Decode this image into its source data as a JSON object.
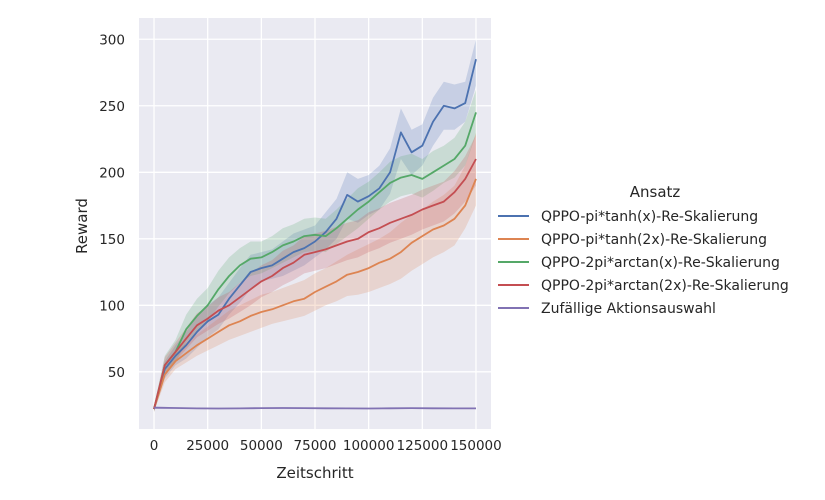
{
  "chart_data": {
    "type": "line",
    "title": "",
    "xlabel": "Zeitschritt",
    "ylabel": "Reward",
    "xlim": [
      -7000,
      157000
    ],
    "ylim": [
      7,
      316
    ],
    "xticks": [
      0,
      25000,
      50000,
      75000,
      100000,
      125000,
      150000
    ],
    "xtick_labels": [
      "0",
      "25000",
      "50000",
      "75000",
      "100000",
      "125000",
      "150000"
    ],
    "yticks": [
      50,
      100,
      150,
      200,
      250,
      300
    ],
    "ytick_labels": [
      "50",
      "100",
      "150",
      "200",
      "250",
      "300"
    ],
    "grid": true,
    "legend": {
      "title": "Ansatz",
      "placement": "right-outside"
    },
    "series": [
      {
        "name": "QPPO-pi*tanh(x)-Re-Skalierung",
        "color": "#4c72b0",
        "x": [
          0,
          5000,
          10000,
          15000,
          20000,
          25000,
          30000,
          35000,
          40000,
          45000,
          50000,
          55000,
          60000,
          65000,
          70000,
          75000,
          80000,
          85000,
          90000,
          95000,
          100000,
          105000,
          110000,
          115000,
          120000,
          125000,
          130000,
          135000,
          140000,
          145000,
          150000
        ],
        "y": [
          22,
          52,
          62,
          70,
          80,
          88,
          93,
          105,
          115,
          125,
          128,
          130,
          135,
          140,
          143,
          148,
          155,
          165,
          183,
          178,
          182,
          188,
          200,
          230,
          215,
          220,
          238,
          250,
          248,
          252,
          285
        ],
        "lower": [
          20,
          45,
          55,
          60,
          68,
          76,
          82,
          93,
          102,
          112,
          118,
          120,
          122,
          126,
          130,
          136,
          142,
          150,
          165,
          162,
          168,
          172,
          184,
          210,
          198,
          205,
          220,
          232,
          232,
          238,
          265
        ],
        "upper": [
          24,
          58,
          70,
          80,
          92,
          100,
          106,
          117,
          128,
          138,
          140,
          142,
          148,
          154,
          157,
          160,
          170,
          180,
          200,
          195,
          198,
          205,
          218,
          248,
          232,
          236,
          256,
          268,
          266,
          268,
          300
        ]
      },
      {
        "name": "QPPO-pi*tanh(2x)-Re-Skalierung",
        "color": "#dd8452",
        "x": [
          0,
          5000,
          10000,
          15000,
          20000,
          25000,
          30000,
          35000,
          40000,
          45000,
          50000,
          55000,
          60000,
          65000,
          70000,
          75000,
          80000,
          85000,
          90000,
          95000,
          100000,
          105000,
          110000,
          115000,
          120000,
          125000,
          130000,
          135000,
          140000,
          145000,
          150000
        ],
        "y": [
          22,
          48,
          58,
          64,
          70,
          75,
          80,
          85,
          88,
          92,
          95,
          97,
          100,
          103,
          105,
          110,
          114,
          118,
          123,
          125,
          128,
          132,
          135,
          140,
          147,
          152,
          157,
          160,
          165,
          175,
          195
        ],
        "lower": [
          20,
          42,
          52,
          57,
          62,
          66,
          70,
          74,
          77,
          80,
          83,
          86,
          88,
          90,
          92,
          96,
          100,
          103,
          107,
          108,
          110,
          113,
          116,
          120,
          126,
          131,
          136,
          140,
          145,
          158,
          175
        ],
        "upper": [
          24,
          55,
          65,
          72,
          78,
          84,
          90,
          96,
          100,
          104,
          108,
          110,
          113,
          116,
          119,
          124,
          128,
          133,
          138,
          142,
          146,
          150,
          155,
          162,
          168,
          172,
          178,
          183,
          190,
          205,
          230
        ]
      },
      {
        "name": "QPPO-2pi*arctan(x)-Re-Skalierung",
        "color": "#55a868",
        "x": [
          0,
          5000,
          10000,
          15000,
          20000,
          25000,
          30000,
          35000,
          40000,
          45000,
          50000,
          55000,
          60000,
          65000,
          70000,
          75000,
          80000,
          85000,
          90000,
          95000,
          100000,
          105000,
          110000,
          115000,
          120000,
          125000,
          130000,
          135000,
          140000,
          145000,
          150000
        ],
        "y": [
          22,
          55,
          65,
          82,
          92,
          100,
          112,
          122,
          130,
          135,
          136,
          140,
          145,
          148,
          152,
          153,
          152,
          158,
          165,
          172,
          178,
          185,
          192,
          196,
          198,
          195,
          200,
          205,
          210,
          220,
          245
        ],
        "lower": [
          20,
          48,
          57,
          72,
          80,
          88,
          99,
          109,
          117,
          122,
          124,
          128,
          132,
          136,
          140,
          141,
          140,
          146,
          152,
          158,
          165,
          172,
          178,
          182,
          184,
          181,
          186,
          192,
          196,
          205,
          228
        ],
        "upper": [
          24,
          62,
          74,
          93,
          105,
          113,
          126,
          136,
          143,
          148,
          148,
          152,
          158,
          161,
          165,
          166,
          165,
          172,
          180,
          188,
          193,
          200,
          208,
          212,
          214,
          210,
          216,
          220,
          226,
          238,
          262
        ]
      },
      {
        "name": "QPPO-2pi*arctan(2x)-Re-Skalierung",
        "color": "#c44e52",
        "x": [
          0,
          5000,
          10000,
          15000,
          20000,
          25000,
          30000,
          35000,
          40000,
          45000,
          50000,
          55000,
          60000,
          65000,
          70000,
          75000,
          80000,
          85000,
          90000,
          95000,
          100000,
          105000,
          110000,
          115000,
          120000,
          125000,
          130000,
          135000,
          140000,
          145000,
          150000
        ],
        "y": [
          22,
          55,
          65,
          75,
          85,
          90,
          96,
          100,
          106,
          112,
          118,
          122,
          128,
          132,
          138,
          140,
          142,
          145,
          148,
          150,
          155,
          158,
          162,
          165,
          168,
          172,
          175,
          178,
          185,
          195,
          210
        ],
        "lower": [
          20,
          49,
          58,
          67,
          76,
          81,
          86,
          90,
          95,
          100,
          106,
          110,
          115,
          119,
          124,
          126,
          128,
          131,
          134,
          136,
          140,
          143,
          147,
          150,
          153,
          157,
          160,
          163,
          169,
          178,
          190
        ],
        "upper": [
          24,
          61,
          72,
          83,
          94,
          99,
          106,
          110,
          117,
          124,
          130,
          134,
          141,
          145,
          152,
          154,
          156,
          159,
          162,
          164,
          170,
          173,
          177,
          180,
          183,
          187,
          190,
          193,
          201,
          212,
          228
        ]
      },
      {
        "name": "Zufällige Aktionsauswahl",
        "color": "#8172b3",
        "x": [
          0,
          10000,
          20000,
          30000,
          40000,
          50000,
          60000,
          70000,
          80000,
          90000,
          100000,
          110000,
          120000,
          130000,
          140000,
          150000
        ],
        "y": [
          23,
          22.8,
          22.5,
          22.4,
          22.5,
          22.7,
          22.8,
          22.7,
          22.6,
          22.5,
          22.4,
          22.6,
          22.7,
          22.6,
          22.5,
          22.5
        ],
        "lower": [
          22,
          22.2,
          22.0,
          21.9,
          22.0,
          22.2,
          22.3,
          22.2,
          22.1,
          22.0,
          21.9,
          22.1,
          22.2,
          22.1,
          22.0,
          22.0
        ],
        "upper": [
          24,
          23.4,
          23.0,
          22.9,
          23.0,
          23.2,
          23.3,
          23.2,
          23.1,
          23.0,
          22.9,
          23.1,
          23.2,
          23.1,
          23.0,
          23.0
        ]
      }
    ]
  }
}
